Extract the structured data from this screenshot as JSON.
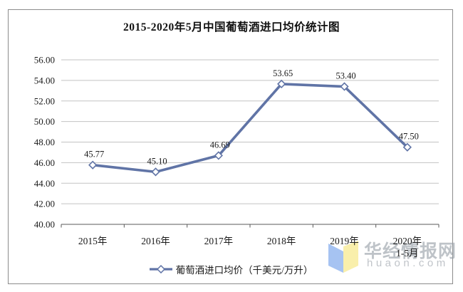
{
  "chart_data": {
    "type": "line",
    "title": "2015-2020年5月中国葡萄酒进口均价统计图",
    "categories": [
      "2015年",
      "2016年",
      "2017年",
      "2018年",
      "2019年",
      "2020年\n1-5月"
    ],
    "values": [
      45.77,
      45.1,
      46.69,
      53.65,
      53.4,
      47.5
    ],
    "data_labels": [
      "45.77",
      "45.10",
      "46.69",
      "53.65",
      "53.40",
      "47.50"
    ],
    "series_name": "葡萄酒进口均价（千美元/万升）",
    "xlabel": "",
    "ylabel": "",
    "ylim": [
      40,
      56
    ],
    "ytick_step": 2,
    "ytick_format_example": "40.00",
    "grid": true,
    "legend_position": "bottom",
    "marker": "open-diamond"
  },
  "colors": {
    "line": "#6074a6",
    "marker_fill": "#ffffff",
    "grid": "#c3c3c3",
    "axis": "#595959",
    "text": "#1a1a1a",
    "frame_border": "#8c8c8c",
    "background": "#ffffff"
  },
  "watermark": {
    "name": "华经情报网",
    "domain": "huaon.com",
    "logo_blue": "#a6c3f2",
    "logo_yellow": "#f9efab"
  }
}
